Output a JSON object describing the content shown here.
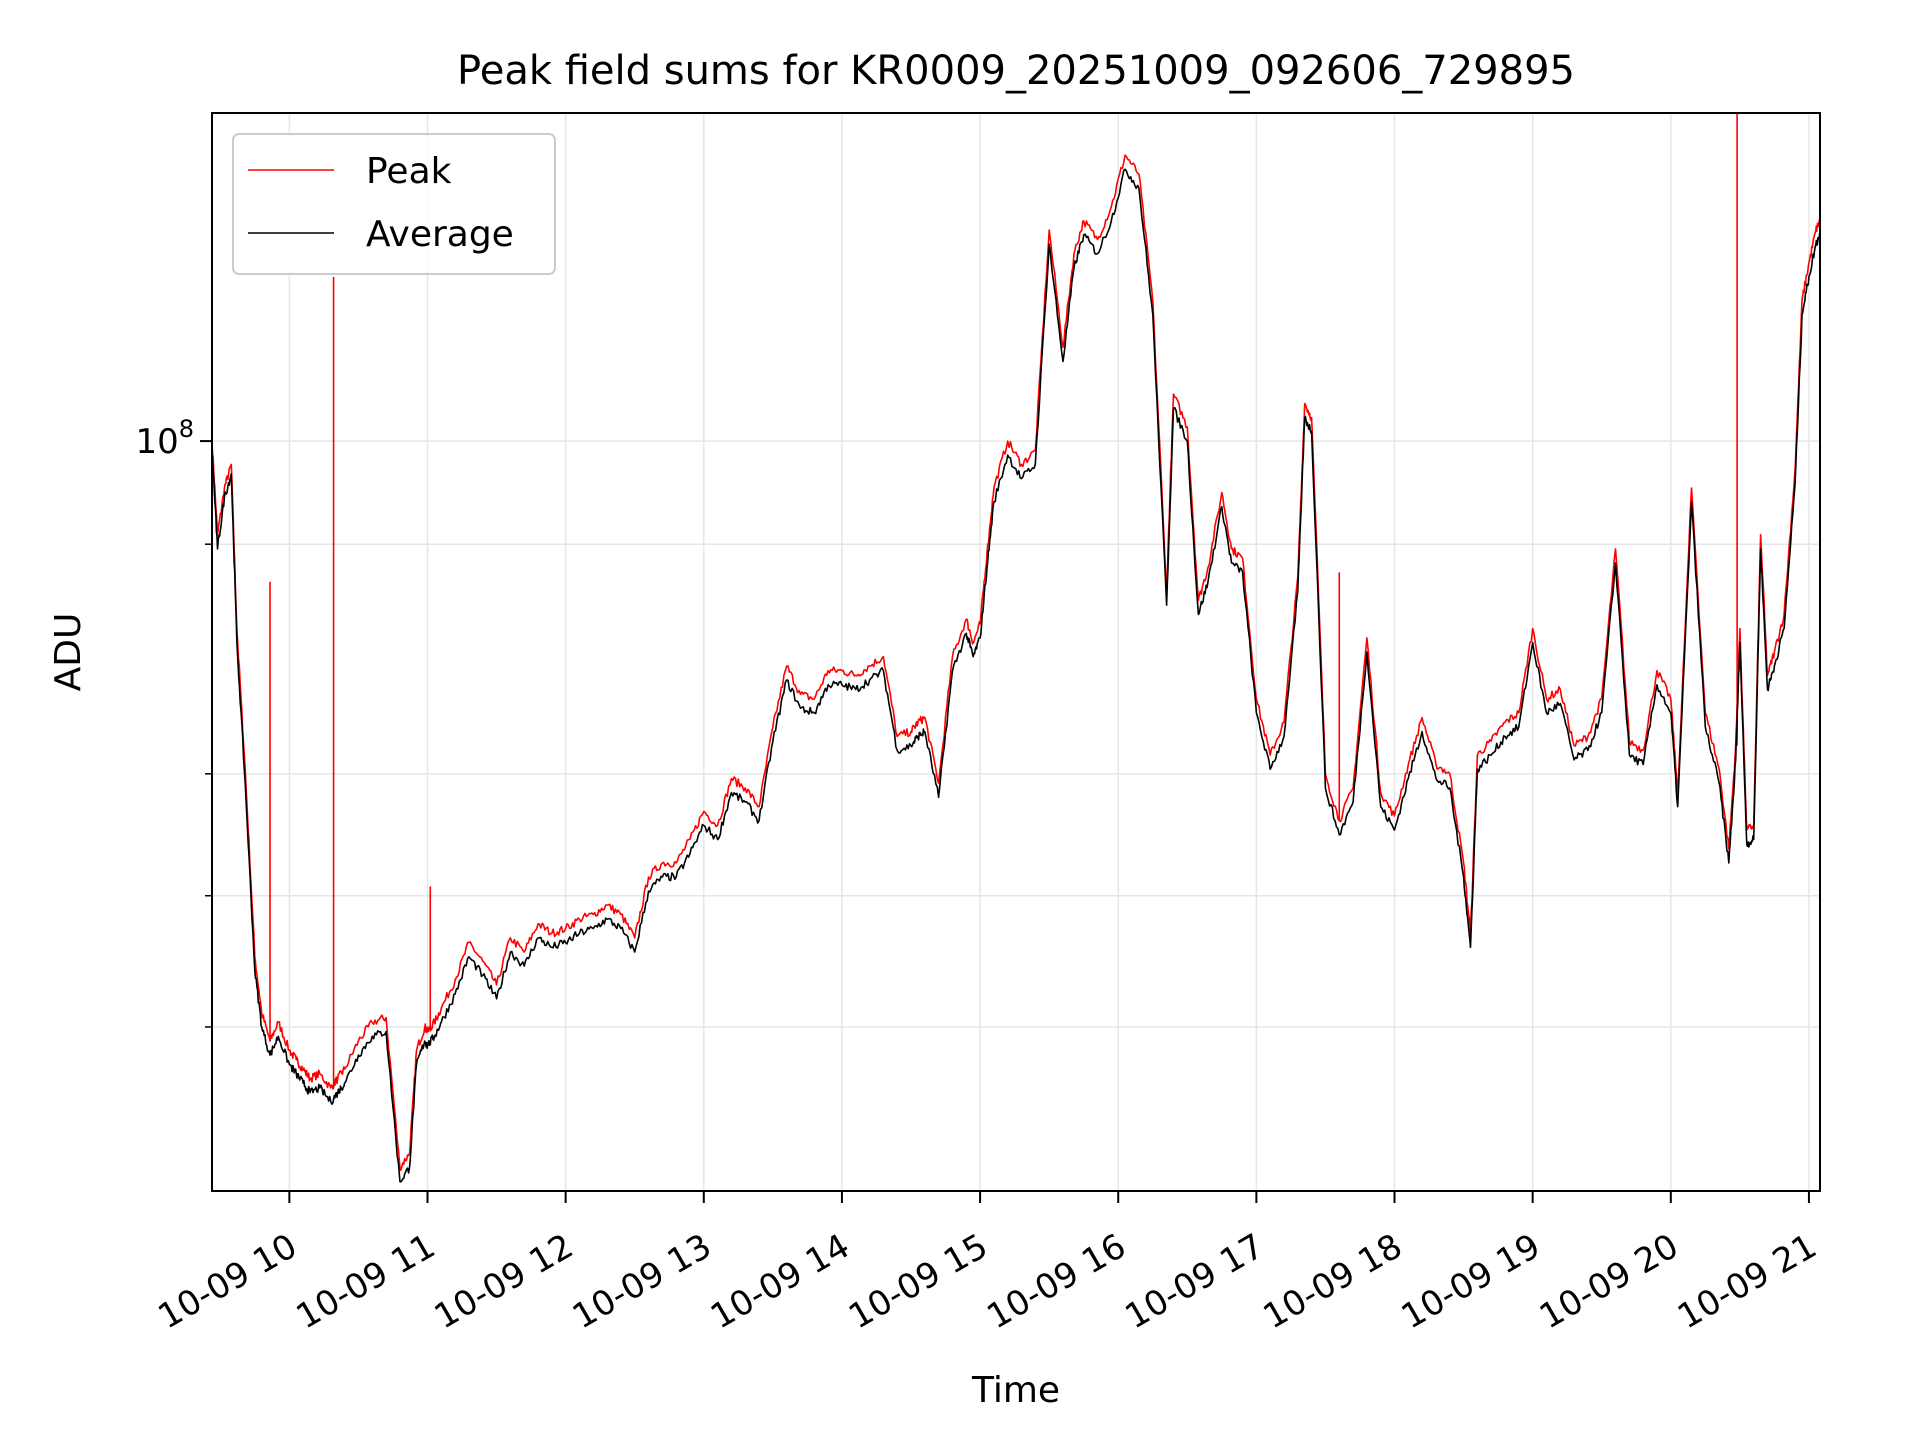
{
  "chart_data": {
    "type": "line",
    "title": "Peak field sums for KR0009_20251009_092606_729895",
    "xlabel": "Time",
    "ylabel": "ADU",
    "y_scale": "log",
    "xlim": [
      9.44,
      21.08
    ],
    "ylim_log10": [
      7.84,
      8.07
    ],
    "grid": true,
    "legend_position": "upper-left",
    "x_ticks": [
      {
        "value": 10,
        "label": "10-09 10"
      },
      {
        "value": 11,
        "label": "10-09 11"
      },
      {
        "value": 12,
        "label": "10-09 12"
      },
      {
        "value": 13,
        "label": "10-09 13"
      },
      {
        "value": 14,
        "label": "10-09 14"
      },
      {
        "value": 15,
        "label": "10-09 15"
      },
      {
        "value": 16,
        "label": "10-09 16"
      },
      {
        "value": 17,
        "label": "10-09 17"
      },
      {
        "value": 18,
        "label": "10-09 18"
      },
      {
        "value": 19,
        "label": "10-09 19"
      },
      {
        "value": 20,
        "label": "10-09 20"
      },
      {
        "value": 21,
        "label": "10-09 21"
      }
    ],
    "y_major_tick": {
      "log10": 8,
      "base": "10",
      "exponent": "8"
    },
    "y_minor_ticks_log10": [
      7.875,
      7.903,
      7.929,
      7.978
    ],
    "series": [
      {
        "name": "Peak",
        "color": "#ff0000",
        "x": [
          9.44,
          9.48,
          9.53,
          9.58,
          9.62,
          9.68,
          9.75,
          9.8,
          9.86,
          9.92,
          10.0,
          10.05,
          10.1,
          10.15,
          10.22,
          10.3,
          10.35,
          10.4,
          10.5,
          10.6,
          10.7,
          10.8,
          10.87,
          10.92,
          10.98,
          11.0,
          11.05,
          11.1,
          11.2,
          11.3,
          11.4,
          11.5,
          11.6,
          11.7,
          11.8,
          11.9,
          12.0,
          12.1,
          12.2,
          12.3,
          12.4,
          12.5,
          12.6,
          12.7,
          12.8,
          12.9,
          13.0,
          13.1,
          13.2,
          13.3,
          13.4,
          13.5,
          13.6,
          13.7,
          13.8,
          13.9,
          14.0,
          14.1,
          14.2,
          14.3,
          14.4,
          14.5,
          14.55,
          14.6,
          14.7,
          14.8,
          14.9,
          14.95,
          15.0,
          15.05,
          15.1,
          15.2,
          15.3,
          15.4,
          15.5,
          15.6,
          15.68,
          15.75,
          15.85,
          15.95,
          16.05,
          16.15,
          16.25,
          16.35,
          16.4,
          16.5,
          16.58,
          16.65,
          16.75,
          16.82,
          16.9,
          17.0,
          17.1,
          17.2,
          17.3,
          17.35,
          17.4,
          17.5,
          17.6,
          17.7,
          17.8,
          17.9,
          18.0,
          18.1,
          18.2,
          18.3,
          18.4,
          18.5,
          18.55,
          18.6,
          18.7,
          18.8,
          18.9,
          19.0,
          19.1,
          19.2,
          19.3,
          19.4,
          19.5,
          19.6,
          19.7,
          19.8,
          19.9,
          20.0,
          20.05,
          20.15,
          20.25,
          20.35,
          20.42,
          20.47,
          20.5,
          20.55,
          20.6,
          20.65,
          20.7,
          20.75,
          20.82,
          20.9,
          20.95,
          21.0,
          21.05,
          21.08
        ],
        "y": [
          8.0,
          7.98,
          7.99,
          7.995,
          7.96,
          7.93,
          7.89,
          7.878,
          7.872,
          7.876,
          7.87,
          7.868,
          7.866,
          7.864,
          7.865,
          7.862,
          7.864,
          7.866,
          7.872,
          7.876,
          7.877,
          7.845,
          7.848,
          7.87,
          7.875,
          7.874,
          7.876,
          7.879,
          7.885,
          7.893,
          7.889,
          7.884,
          7.894,
          7.891,
          7.897,
          7.895,
          7.896,
          7.898,
          7.899,
          7.901,
          7.899,
          7.894,
          7.907,
          7.91,
          7.91,
          7.915,
          7.921,
          7.918,
          7.928,
          7.926,
          7.922,
          7.939,
          7.952,
          7.946,
          7.945,
          7.951,
          7.951,
          7.95,
          7.952,
          7.954,
          7.937,
          7.938,
          7.94,
          7.941,
          7.927,
          7.954,
          7.962,
          7.957,
          7.961,
          7.976,
          7.99,
          8.0,
          7.995,
          7.998,
          8.045,
          8.02,
          8.04,
          8.047,
          8.043,
          8.05,
          8.061,
          8.057,
          8.03,
          7.968,
          8.01,
          8.003,
          7.966,
          7.973,
          7.989,
          7.977,
          7.975,
          7.945,
          7.933,
          7.94,
          7.971,
          8.008,
          8.005,
          7.929,
          7.919,
          7.926,
          7.958,
          7.925,
          7.92,
          7.931,
          7.941,
          7.931,
          7.929,
          7.91,
          7.895,
          7.933,
          7.936,
          7.94,
          7.942,
          7.96,
          7.945,
          7.947,
          7.935,
          7.937,
          7.945,
          7.977,
          7.936,
          7.934,
          7.951,
          7.945,
          7.925,
          7.99,
          7.942,
          7.93,
          7.913,
          7.935,
          7.96,
          7.917,
          7.918,
          7.98,
          7.95,
          7.955,
          7.963,
          7.994,
          8.03,
          8.038,
          8.045,
          8.047
        ],
        "spikes": [
          {
            "x": 9.86,
            "y": 7.97
          },
          {
            "x": 10.32,
            "y": 8.035
          },
          {
            "x": 11.02,
            "y": 7.905
          },
          {
            "x": 17.6,
            "y": 7.972
          },
          {
            "x": 20.48,
            "y": 8.07
          }
        ]
      },
      {
        "name": "Average",
        "color": "#000000",
        "x": [
          9.44,
          9.48,
          9.53,
          9.58,
          9.62,
          9.68,
          9.75,
          9.8,
          9.86,
          9.92,
          10.0,
          10.05,
          10.1,
          10.15,
          10.22,
          10.3,
          10.35,
          10.4,
          10.5,
          10.6,
          10.7,
          10.8,
          10.87,
          10.92,
          10.98,
          11.0,
          11.05,
          11.1,
          11.2,
          11.3,
          11.4,
          11.5,
          11.6,
          11.7,
          11.8,
          11.9,
          12.0,
          12.1,
          12.2,
          12.3,
          12.4,
          12.5,
          12.6,
          12.7,
          12.8,
          12.9,
          13.0,
          13.1,
          13.2,
          13.3,
          13.4,
          13.5,
          13.6,
          13.7,
          13.8,
          13.9,
          14.0,
          14.1,
          14.2,
          14.3,
          14.4,
          14.5,
          14.55,
          14.6,
          14.7,
          14.8,
          14.9,
          14.95,
          15.0,
          15.05,
          15.1,
          15.2,
          15.3,
          15.4,
          15.5,
          15.6,
          15.68,
          15.75,
          15.85,
          15.95,
          16.05,
          16.15,
          16.25,
          16.35,
          16.4,
          16.5,
          16.58,
          16.65,
          16.75,
          16.82,
          16.9,
          17.0,
          17.1,
          17.2,
          17.3,
          17.35,
          17.4,
          17.5,
          17.6,
          17.7,
          17.8,
          17.9,
          18.0,
          18.1,
          18.2,
          18.3,
          18.4,
          18.5,
          18.55,
          18.6,
          18.7,
          18.8,
          18.9,
          19.0,
          19.1,
          19.2,
          19.3,
          19.4,
          19.5,
          19.6,
          19.7,
          19.8,
          19.9,
          20.0,
          20.05,
          20.15,
          20.25,
          20.35,
          20.42,
          20.47,
          20.5,
          20.55,
          20.6,
          20.65,
          20.7,
          20.75,
          20.82,
          20.9,
          20.95,
          21.0,
          21.05,
          21.08
        ],
        "y": [
          7.998,
          7.977,
          7.988,
          7.993,
          7.957,
          7.927,
          7.887,
          7.875,
          7.869,
          7.873,
          7.867,
          7.865,
          7.863,
          7.861,
          7.862,
          7.859,
          7.861,
          7.863,
          7.869,
          7.873,
          7.874,
          7.842,
          7.845,
          7.867,
          7.872,
          7.871,
          7.873,
          7.876,
          7.882,
          7.89,
          7.886,
          7.881,
          7.891,
          7.888,
          7.894,
          7.892,
          7.893,
          7.895,
          7.896,
          7.898,
          7.896,
          7.891,
          7.904,
          7.907,
          7.907,
          7.912,
          7.918,
          7.915,
          7.925,
          7.923,
          7.919,
          7.936,
          7.949,
          7.943,
          7.942,
          7.948,
          7.948,
          7.947,
          7.949,
          7.951,
          7.934,
          7.935,
          7.937,
          7.938,
          7.924,
          7.951,
          7.959,
          7.954,
          7.958,
          7.973,
          7.987,
          7.997,
          7.992,
          7.995,
          8.042,
          8.017,
          8.037,
          8.044,
          8.04,
          8.047,
          8.058,
          8.054,
          8.027,
          7.965,
          8.007,
          8.0,
          7.963,
          7.97,
          7.986,
          7.974,
          7.972,
          7.942,
          7.93,
          7.937,
          7.968,
          8.005,
          8.002,
          7.926,
          7.916,
          7.923,
          7.955,
          7.922,
          7.917,
          7.928,
          7.938,
          7.928,
          7.926,
          7.907,
          7.892,
          7.93,
          7.933,
          7.937,
          7.939,
          7.957,
          7.942,
          7.944,
          7.932,
          7.934,
          7.942,
          7.974,
          7.933,
          7.931,
          7.948,
          7.942,
          7.922,
          7.987,
          7.939,
          7.927,
          7.91,
          7.932,
          7.957,
          7.914,
          7.915,
          7.977,
          7.947,
          7.952,
          7.96,
          7.991,
          8.027,
          8.035,
          8.042,
          8.044
        ]
      }
    ]
  }
}
